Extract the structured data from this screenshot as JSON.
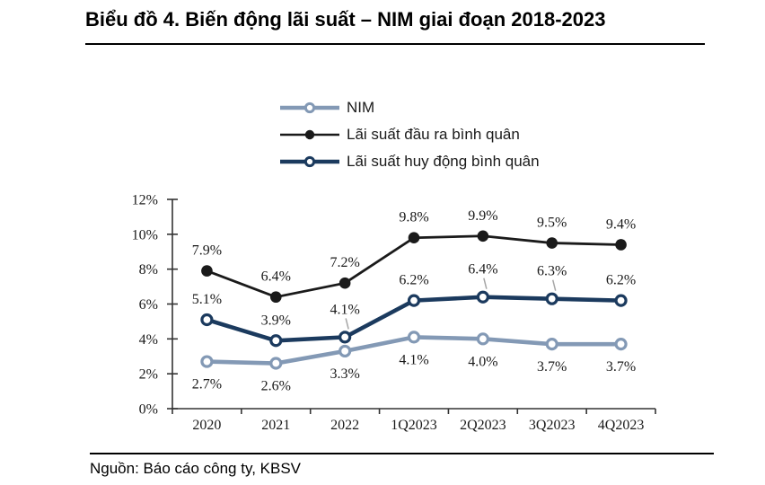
{
  "header": {
    "title": "Biểu đồ 4. Biến động lãi suất – NIM giai đoạn 2018-2023"
  },
  "footer": {
    "source": "Nguồn: Báo cáo công ty, KBSV"
  },
  "chart_data": {
    "type": "line",
    "title": "Biểu đồ 4. Biến động lãi suất – NIM giai đoạn 2018-2023",
    "categories": [
      "2020",
      "2021",
      "2022",
      "1Q2023",
      "2Q2023",
      "3Q2023",
      "4Q2023"
    ],
    "series": [
      {
        "id": "nim",
        "name": "NIM",
        "color": "#8399b5",
        "marker": "open-circle",
        "line_width": 4.6,
        "values": [
          2.7,
          2.6,
          3.3,
          4.1,
          4.0,
          3.7,
          3.7
        ],
        "labels": [
          "2.7%",
          "2.6%",
          "3.3%",
          "4.1%",
          "4.0%",
          "3.7%",
          "3.7%"
        ],
        "label_side": "below",
        "leader_indices": []
      },
      {
        "id": "lai-suat-dau-ra-binh-quan",
        "name": "Lãi suất đầu ra bình quân",
        "color": "#1a1a1a",
        "marker": "filled-circle",
        "line_width": 2.8,
        "values": [
          7.9,
          6.4,
          7.2,
          9.8,
          9.9,
          9.5,
          9.4
        ],
        "labels": [
          "7.9%",
          "6.4%",
          "7.2%",
          "9.8%",
          "9.9%",
          "9.5%",
          "9.4%"
        ],
        "label_side": "above",
        "leader_indices": []
      },
      {
        "id": "lai-suat-huy-dong-binh-quan",
        "name": "Lãi suất huy động bình quân",
        "color": "#1b3a5e",
        "marker": "open-circle",
        "line_width": 4.6,
        "values": [
          5.1,
          3.9,
          4.1,
          6.2,
          6.4,
          6.3,
          6.2
        ],
        "labels": [
          "5.1%",
          "3.9%",
          "4.1%",
          "6.2%",
          "6.4%",
          "6.3%",
          "6.2%"
        ],
        "label_side": "above",
        "leader_indices": [
          2,
          4,
          5
        ]
      }
    ],
    "xlabel": "",
    "ylabel": "",
    "ylim": [
      0,
      12
    ],
    "ytick_labels": [
      "0%",
      "2%",
      "4%",
      "6%",
      "8%",
      "10%",
      "12%"
    ],
    "grid": false,
    "legend_position": "top-center",
    "axis_color": "#333333",
    "label_color": "#1a1a1a",
    "leader_color": "#a6a6a6"
  }
}
